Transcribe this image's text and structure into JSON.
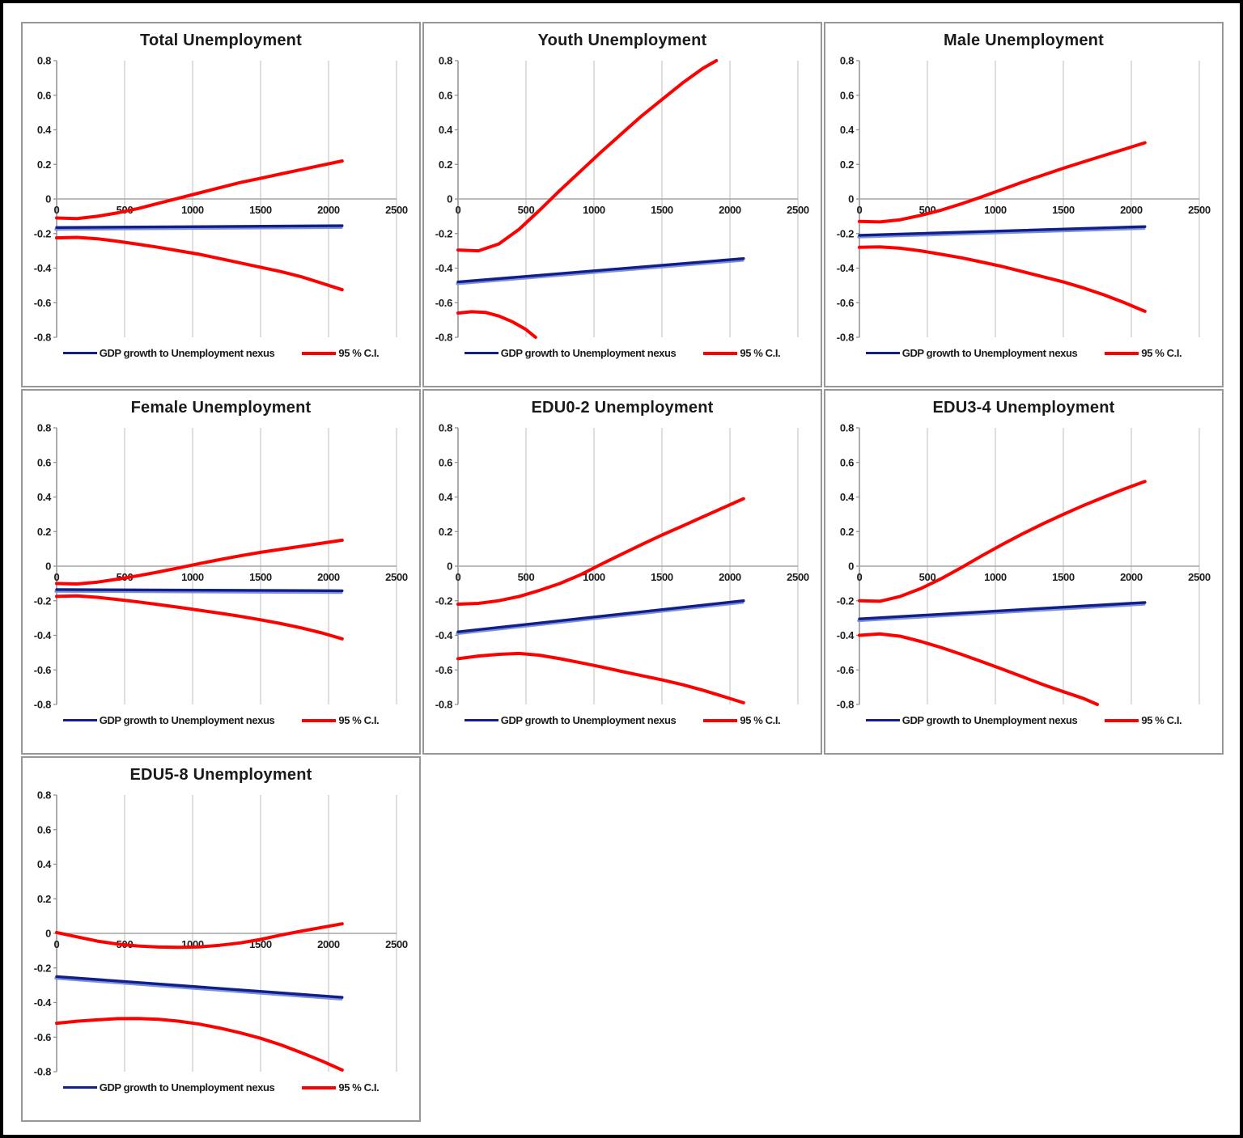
{
  "legend": {
    "nexus_label": "GDP growth to Unemployment nexus",
    "ci_label": "95 % C.I."
  },
  "colors": {
    "nexus": "#101e8c",
    "nexus_light": "#7c90dc",
    "ci": "#fe0000",
    "gridline": "#bdbdbd",
    "y_axis": "#8a8a8a",
    "zero_axis": "#a6a6a6",
    "text": "#1c1c1c",
    "panel_border": "#979797",
    "outer_border": "#000000"
  },
  "axes": {
    "x_min": 0,
    "x_max": 2500,
    "x_ticks": [
      0,
      500,
      1000,
      1500,
      2000,
      2500
    ],
    "y_min": -0.8,
    "y_max": 0.8,
    "y_ticks": [
      0.8,
      0.6,
      0.4,
      0.2,
      0,
      -0.2,
      -0.4,
      -0.6,
      -0.8
    ],
    "grid": true,
    "legend_position": "bottom"
  },
  "chart_data": [
    {
      "type": "line",
      "title": "Total Unemployment",
      "xlabel": "",
      "ylabel": "",
      "series": [
        {
          "name": "95 % C.I. upper",
          "color_key": "ci",
          "points": [
            [
              0,
              -0.11
            ],
            [
              150,
              -0.113
            ],
            [
              300,
              -0.1
            ],
            [
              450,
              -0.08
            ],
            [
              600,
              -0.055
            ],
            [
              750,
              -0.025
            ],
            [
              900,
              0.005
            ],
            [
              1050,
              0.035
            ],
            [
              1200,
              0.065
            ],
            [
              1350,
              0.095
            ],
            [
              1500,
              0.12
            ],
            [
              1650,
              0.145
            ],
            [
              1800,
              0.17
            ],
            [
              1950,
              0.195
            ],
            [
              2100,
              0.22
            ]
          ]
        },
        {
          "name": "95 % C.I. lower",
          "color_key": "ci",
          "points": [
            [
              0,
              -0.225
            ],
            [
              150,
              -0.222
            ],
            [
              300,
              -0.23
            ],
            [
              450,
              -0.245
            ],
            [
              600,
              -0.262
            ],
            [
              750,
              -0.28
            ],
            [
              900,
              -0.3
            ],
            [
              1050,
              -0.32
            ],
            [
              1200,
              -0.345
            ],
            [
              1350,
              -0.37
            ],
            [
              1500,
              -0.395
            ],
            [
              1650,
              -0.42
            ],
            [
              1800,
              -0.45
            ],
            [
              1950,
              -0.487
            ],
            [
              2100,
              -0.525
            ]
          ]
        },
        {
          "name": "GDP growth to Unemployment nexus",
          "color_key": "nexus",
          "points": [
            [
              0,
              -0.165
            ],
            [
              2100,
              -0.155
            ]
          ]
        }
      ]
    },
    {
      "type": "line",
      "title": "Youth Unemployment",
      "xlabel": "",
      "ylabel": "",
      "series": [
        {
          "name": "95 % C.I. upper",
          "color_key": "ci",
          "points": [
            [
              0,
              -0.295
            ],
            [
              150,
              -0.3
            ],
            [
              300,
              -0.26
            ],
            [
              450,
              -0.175
            ],
            [
              600,
              -0.065
            ],
            [
              750,
              0.05
            ],
            [
              900,
              0.16
            ],
            [
              1050,
              0.27
            ],
            [
              1200,
              0.375
            ],
            [
              1350,
              0.48
            ],
            [
              1500,
              0.575
            ],
            [
              1650,
              0.67
            ],
            [
              1800,
              0.755
            ],
            [
              1900,
              0.8
            ]
          ]
        },
        {
          "name": "95 % C.I. lower",
          "color_key": "ci",
          "points": [
            [
              0,
              -0.66
            ],
            [
              100,
              -0.652
            ],
            [
              200,
              -0.656
            ],
            [
              300,
              -0.677
            ],
            [
              400,
              -0.71
            ],
            [
              500,
              -0.755
            ],
            [
              570,
              -0.8
            ]
          ]
        },
        {
          "name": "GDP growth to Unemployment nexus",
          "color_key": "nexus",
          "points": [
            [
              0,
              -0.48
            ],
            [
              2100,
              -0.345
            ]
          ]
        }
      ]
    },
    {
      "type": "line",
      "title": "Male Unemployment",
      "xlabel": "",
      "ylabel": "",
      "series": [
        {
          "name": "95 % C.I. upper",
          "color_key": "ci",
          "points": [
            [
              0,
              -0.13
            ],
            [
              150,
              -0.133
            ],
            [
              300,
              -0.12
            ],
            [
              450,
              -0.095
            ],
            [
              600,
              -0.065
            ],
            [
              750,
              -0.028
            ],
            [
              900,
              0.012
            ],
            [
              1050,
              0.055
            ],
            [
              1200,
              0.098
            ],
            [
              1350,
              0.138
            ],
            [
              1500,
              0.178
            ],
            [
              1650,
              0.215
            ],
            [
              1800,
              0.252
            ],
            [
              1950,
              0.288
            ],
            [
              2100,
              0.325
            ]
          ]
        },
        {
          "name": "95 % C.I. lower",
          "color_key": "ci",
          "points": [
            [
              0,
              -0.28
            ],
            [
              150,
              -0.277
            ],
            [
              300,
              -0.285
            ],
            [
              450,
              -0.3
            ],
            [
              600,
              -0.32
            ],
            [
              750,
              -0.34
            ],
            [
              900,
              -0.365
            ],
            [
              1050,
              -0.39
            ],
            [
              1200,
              -0.42
            ],
            [
              1350,
              -0.45
            ],
            [
              1500,
              -0.48
            ],
            [
              1650,
              -0.515
            ],
            [
              1800,
              -0.555
            ],
            [
              1950,
              -0.6
            ],
            [
              2100,
              -0.65
            ]
          ]
        },
        {
          "name": "GDP growth to Unemployment nexus",
          "color_key": "nexus",
          "points": [
            [
              0,
              -0.21
            ],
            [
              2100,
              -0.16
            ]
          ]
        }
      ]
    },
    {
      "type": "line",
      "title": "Female Unemployment",
      "xlabel": "",
      "ylabel": "",
      "series": [
        {
          "name": "95 % C.I. upper",
          "color_key": "ci",
          "points": [
            [
              0,
              -0.1
            ],
            [
              150,
              -0.103
            ],
            [
              300,
              -0.092
            ],
            [
              450,
              -0.075
            ],
            [
              600,
              -0.055
            ],
            [
              750,
              -0.033
            ],
            [
              900,
              -0.01
            ],
            [
              1050,
              0.015
            ],
            [
              1200,
              0.038
            ],
            [
              1350,
              0.06
            ],
            [
              1500,
              0.08
            ],
            [
              1650,
              0.098
            ],
            [
              1800,
              0.115
            ],
            [
              1950,
              0.133
            ],
            [
              2100,
              0.15
            ]
          ]
        },
        {
          "name": "95 % C.I. lower",
          "color_key": "ci",
          "points": [
            [
              0,
              -0.175
            ],
            [
              150,
              -0.172
            ],
            [
              300,
              -0.18
            ],
            [
              450,
              -0.193
            ],
            [
              600,
              -0.207
            ],
            [
              750,
              -0.222
            ],
            [
              900,
              -0.238
            ],
            [
              1050,
              -0.255
            ],
            [
              1200,
              -0.272
            ],
            [
              1350,
              -0.29
            ],
            [
              1500,
              -0.31
            ],
            [
              1650,
              -0.332
            ],
            [
              1800,
              -0.357
            ],
            [
              1950,
              -0.386
            ],
            [
              2100,
              -0.42
            ]
          ]
        },
        {
          "name": "GDP growth to Unemployment nexus",
          "color_key": "nexus",
          "points": [
            [
              0,
              -0.135
            ],
            [
              2100,
              -0.142
            ]
          ]
        }
      ]
    },
    {
      "type": "line",
      "title": "EDU0-2 Unemployment",
      "xlabel": "",
      "ylabel": "",
      "series": [
        {
          "name": "95 % C.I. upper",
          "color_key": "ci",
          "points": [
            [
              0,
              -0.22
            ],
            [
              150,
              -0.215
            ],
            [
              300,
              -0.2
            ],
            [
              450,
              -0.175
            ],
            [
              600,
              -0.14
            ],
            [
              750,
              -0.1
            ],
            [
              900,
              -0.05
            ],
            [
              1050,
              0.01
            ],
            [
              1200,
              0.068
            ],
            [
              1350,
              0.125
            ],
            [
              1500,
              0.18
            ],
            [
              1650,
              0.232
            ],
            [
              1800,
              0.285
            ],
            [
              1950,
              0.338
            ],
            [
              2100,
              0.39
            ]
          ]
        },
        {
          "name": "95 % C.I. lower",
          "color_key": "ci",
          "points": [
            [
              0,
              -0.535
            ],
            [
              150,
              -0.52
            ],
            [
              300,
              -0.51
            ],
            [
              450,
              -0.505
            ],
            [
              600,
              -0.515
            ],
            [
              750,
              -0.535
            ],
            [
              900,
              -0.558
            ],
            [
              1050,
              -0.582
            ],
            [
              1200,
              -0.608
            ],
            [
              1350,
              -0.633
            ],
            [
              1500,
              -0.658
            ],
            [
              1650,
              -0.685
            ],
            [
              1800,
              -0.717
            ],
            [
              1950,
              -0.753
            ],
            [
              2100,
              -0.79
            ]
          ]
        },
        {
          "name": "GDP growth to Unemployment nexus",
          "color_key": "nexus",
          "points": [
            [
              0,
              -0.38
            ],
            [
              2100,
              -0.2
            ]
          ]
        }
      ]
    },
    {
      "type": "line",
      "title": "EDU3-4 Unemployment",
      "xlabel": "",
      "ylabel": "",
      "series": [
        {
          "name": "95 % C.I. upper",
          "color_key": "ci",
          "points": [
            [
              0,
              -0.2
            ],
            [
              150,
              -0.203
            ],
            [
              300,
              -0.175
            ],
            [
              450,
              -0.13
            ],
            [
              600,
              -0.073
            ],
            [
              750,
              -0.008
            ],
            [
              900,
              0.06
            ],
            [
              1050,
              0.125
            ],
            [
              1200,
              0.187
            ],
            [
              1350,
              0.245
            ],
            [
              1500,
              0.3
            ],
            [
              1650,
              0.352
            ],
            [
              1800,
              0.4
            ],
            [
              1950,
              0.447
            ],
            [
              2100,
              0.49
            ]
          ]
        },
        {
          "name": "95 % C.I. lower",
          "color_key": "ci",
          "points": [
            [
              0,
              -0.4
            ],
            [
              150,
              -0.392
            ],
            [
              300,
              -0.405
            ],
            [
              450,
              -0.435
            ],
            [
              600,
              -0.47
            ],
            [
              750,
              -0.51
            ],
            [
              900,
              -0.552
            ],
            [
              1050,
              -0.595
            ],
            [
              1200,
              -0.64
            ],
            [
              1350,
              -0.685
            ],
            [
              1500,
              -0.726
            ],
            [
              1650,
              -0.766
            ],
            [
              1750,
              -0.8
            ]
          ]
        },
        {
          "name": "GDP growth to Unemployment nexus",
          "color_key": "nexus",
          "points": [
            [
              0,
              -0.305
            ],
            [
              2100,
              -0.21
            ]
          ]
        }
      ]
    },
    {
      "type": "line",
      "title": "EDU5-8 Unemployment",
      "xlabel": "",
      "ylabel": "",
      "series": [
        {
          "name": "95 % C.I. upper",
          "color_key": "ci",
          "points": [
            [
              0,
              0.005
            ],
            [
              150,
              -0.02
            ],
            [
              300,
              -0.045
            ],
            [
              450,
              -0.062
            ],
            [
              600,
              -0.073
            ],
            [
              750,
              -0.079
            ],
            [
              900,
              -0.081
            ],
            [
              1050,
              -0.078
            ],
            [
              1200,
              -0.069
            ],
            [
              1350,
              -0.055
            ],
            [
              1500,
              -0.035
            ],
            [
              1650,
              -0.01
            ],
            [
              1800,
              0.013
            ],
            [
              1950,
              0.034
            ],
            [
              2100,
              0.055
            ]
          ]
        },
        {
          "name": "95 % C.I. lower",
          "color_key": "ci",
          "points": [
            [
              0,
              -0.52
            ],
            [
              150,
              -0.508
            ],
            [
              300,
              -0.5
            ],
            [
              450,
              -0.493
            ],
            [
              600,
              -0.492
            ],
            [
              750,
              -0.497
            ],
            [
              900,
              -0.508
            ],
            [
              1050,
              -0.525
            ],
            [
              1200,
              -0.548
            ],
            [
              1350,
              -0.575
            ],
            [
              1500,
              -0.607
            ],
            [
              1650,
              -0.645
            ],
            [
              1800,
              -0.69
            ],
            [
              1950,
              -0.738
            ],
            [
              2100,
              -0.79
            ]
          ]
        },
        {
          "name": "GDP growth to Unemployment nexus",
          "color_key": "nexus",
          "points": [
            [
              0,
              -0.25
            ],
            [
              2100,
              -0.37
            ]
          ]
        }
      ]
    }
  ]
}
